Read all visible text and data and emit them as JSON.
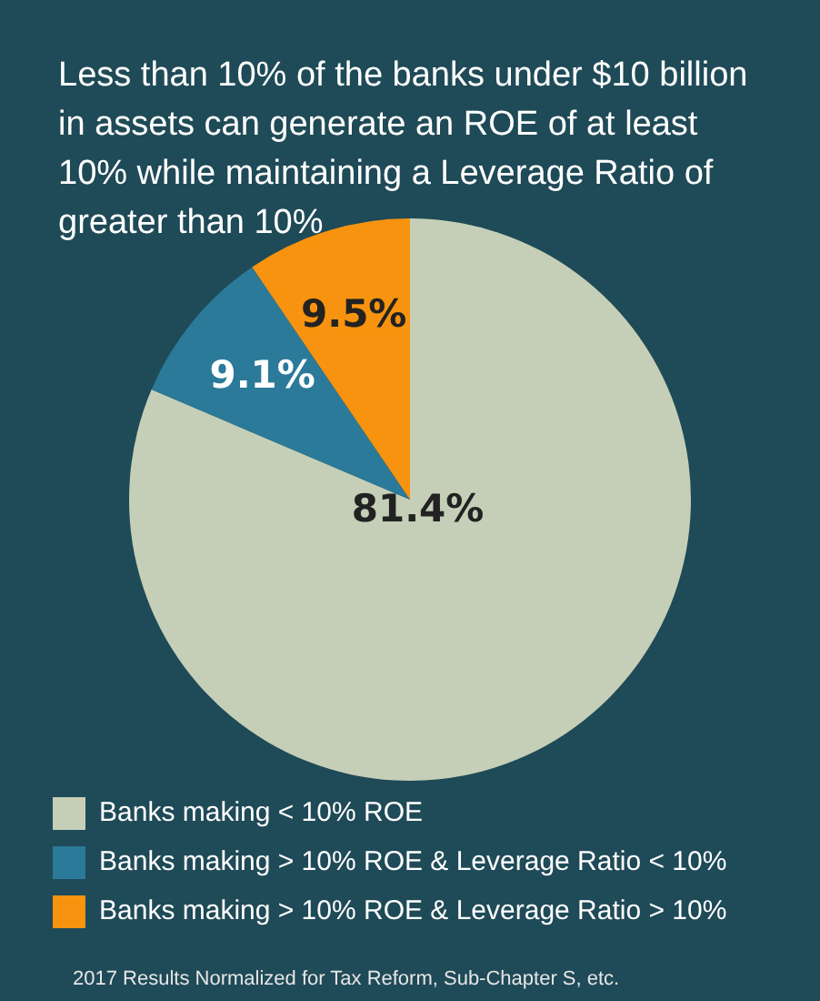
{
  "chart_data": {
    "type": "pie",
    "title": "Less than 10% of the banks under $10 billion in assets can generate an ROE of at least 10% while maintaining a Leverage Ratio of greater than 10%",
    "categories": [
      "Banks making < 10% ROE",
      "Banks making > 10% ROE & Leverage Ratio < 10%",
      "Banks making > 10% ROE & Leverage Ratio > 10%"
    ],
    "values": [
      81.4,
      9.1,
      9.5
    ],
    "colors": [
      "#c5cfb7",
      "#2b7a99",
      "#f7930f"
    ],
    "value_labels": [
      "81.4%",
      "9.1%",
      "9.5%"
    ],
    "legend": "bottom",
    "annotations": [
      "2017 Results Normalized for Tax Reform, Sub-Chapter S, etc."
    ]
  }
}
